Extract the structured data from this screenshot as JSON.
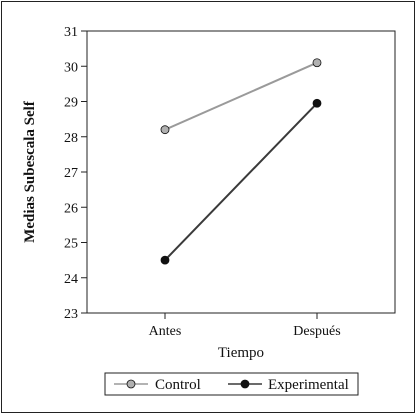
{
  "chart_data": {
    "type": "line",
    "categories": [
      "Antes",
      "Después"
    ],
    "xlabel": "Tiempo",
    "ylabel": "Medias Subescala Self",
    "ylim": [
      23,
      31
    ],
    "yticks": [
      23,
      24,
      25,
      26,
      27,
      28,
      29,
      30,
      31
    ],
    "grid": false,
    "legend_position": "bottom",
    "series": [
      {
        "name": "Control",
        "values": [
          28.2,
          30.1
        ],
        "line_color": "#9a9a9a",
        "marker_color": "#b0b0b0"
      },
      {
        "name": "Experimental",
        "values": [
          24.5,
          28.95
        ],
        "line_color": "#3a3a3a",
        "marker_color": "#111111"
      }
    ]
  }
}
